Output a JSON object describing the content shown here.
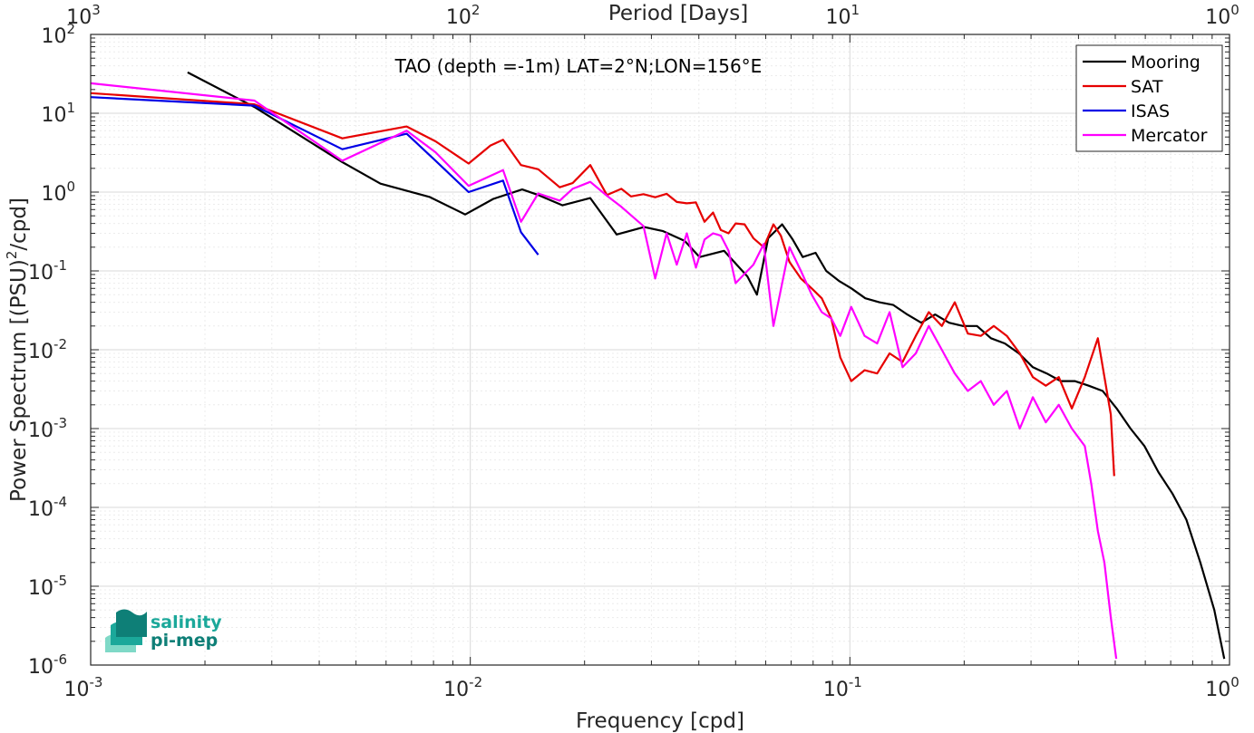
{
  "chart_data": {
    "type": "line",
    "title": "TAO (depth =-1m) LAT=2°N;LON=156°E",
    "xlabel": "Frequency [cpd]",
    "ylabel_parts": [
      "Power Spectrum [(PSU)",
      "2",
      "/cpd]"
    ],
    "x2label": "Period [Days]",
    "xscale": "log",
    "yscale": "log",
    "xlim": [
      0.001,
      1
    ],
    "ylim": [
      1e-06,
      100
    ],
    "grid": true,
    "legend_position": "top-right",
    "xticks": [
      {
        "value": 0.001,
        "base": "10",
        "exp": "-3"
      },
      {
        "value": 0.01,
        "base": "10",
        "exp": "-2"
      },
      {
        "value": 0.1,
        "base": "10",
        "exp": "-1"
      },
      {
        "value": 1,
        "base": "10",
        "exp": "0"
      }
    ],
    "x2ticks": [
      {
        "value": 0.001,
        "base": "10",
        "exp": "3"
      },
      {
        "value": 0.01,
        "base": "10",
        "exp": "2"
      },
      {
        "value": 0.1,
        "base": "10",
        "exp": "1"
      },
      {
        "value": 1,
        "base": "10",
        "exp": "0"
      }
    ],
    "yticks": [
      {
        "value": 100,
        "base": "10",
        "exp": "2"
      },
      {
        "value": 10,
        "base": "10",
        "exp": "1"
      },
      {
        "value": 1,
        "base": "10",
        "exp": "0"
      },
      {
        "value": 0.1,
        "base": "10",
        "exp": "-1"
      },
      {
        "value": 0.01,
        "base": "10",
        "exp": "-2"
      },
      {
        "value": 0.001,
        "base": "10",
        "exp": "-3"
      },
      {
        "value": 0.0001,
        "base": "10",
        "exp": "-4"
      },
      {
        "value": 1e-05,
        "base": "10",
        "exp": "-5"
      },
      {
        "value": 1e-06,
        "base": "10",
        "exp": "-6"
      }
    ],
    "series": [
      {
        "name": "Mooring",
        "color": "#000000",
        "x": [
          0.0018,
          0.0027,
          0.0046,
          0.0058,
          0.0078,
          0.0097,
          0.0115,
          0.0137,
          0.0151,
          0.0175,
          0.0207,
          0.0243,
          0.0287,
          0.0322,
          0.0367,
          0.0402,
          0.0466,
          0.0537,
          0.0569,
          0.0609,
          0.0663,
          0.0707,
          0.0751,
          0.0812,
          0.0866,
          0.0935,
          0.1009,
          0.1098,
          0.1195,
          0.1301,
          0.1416,
          0.1541,
          0.1677,
          0.1825,
          0.1986,
          0.2162,
          0.2353,
          0.2561,
          0.2787,
          0.3033,
          0.3301,
          0.3593,
          0.391,
          0.4256,
          0.4632,
          0.5041,
          0.5486,
          0.5971,
          0.6499,
          0.7073,
          0.7698,
          0.8378,
          0.9119,
          0.9684
        ],
        "y": [
          33,
          12,
          2.4,
          1.28,
          0.87,
          0.52,
          0.82,
          1.08,
          0.92,
          0.68,
          0.84,
          0.29,
          0.36,
          0.32,
          0.24,
          0.15,
          0.18,
          0.085,
          0.05,
          0.26,
          0.39,
          0.25,
          0.15,
          0.17,
          0.1,
          0.075,
          0.06,
          0.045,
          0.04,
          0.037,
          0.028,
          0.022,
          0.028,
          0.022,
          0.02,
          0.02,
          0.014,
          0.012,
          0.009,
          0.006,
          0.005,
          0.004,
          0.004,
          0.0035,
          0.003,
          0.0018,
          0.001,
          0.0006,
          0.00028,
          0.00015,
          7e-05,
          2e-05,
          5e-06,
          1.2e-06
        ]
      },
      {
        "name": "SAT",
        "color": "#e60000",
        "x": [
          0.001,
          0.0027,
          0.0046,
          0.0068,
          0.0081,
          0.0099,
          0.0113,
          0.0122,
          0.0136,
          0.0151,
          0.0172,
          0.0186,
          0.0207,
          0.0229,
          0.025,
          0.0265,
          0.0286,
          0.0307,
          0.0329,
          0.035,
          0.0372,
          0.0393,
          0.0414,
          0.0436,
          0.0457,
          0.0479,
          0.05,
          0.0528,
          0.0557,
          0.0593,
          0.0629,
          0.0658,
          0.0693,
          0.0743,
          0.0793,
          0.0843,
          0.0893,
          0.0943,
          0.1008,
          0.1093,
          0.118,
          0.1272,
          0.1376,
          0.1491,
          0.1613,
          0.1746,
          0.1889,
          0.2045,
          0.2212,
          0.2393,
          0.259,
          0.2802,
          0.3033,
          0.3282,
          0.355,
          0.3843,
          0.4158,
          0.4499,
          0.4868,
          0.4968
        ],
        "y": [
          18,
          13,
          4.8,
          6.8,
          4.4,
          2.3,
          3.9,
          4.6,
          2.2,
          1.95,
          1.15,
          1.3,
          2.2,
          0.92,
          1.1,
          0.88,
          0.94,
          0.86,
          0.95,
          0.75,
          0.72,
          0.74,
          0.42,
          0.55,
          0.33,
          0.3,
          0.4,
          0.39,
          0.26,
          0.2,
          0.39,
          0.28,
          0.13,
          0.08,
          0.06,
          0.045,
          0.025,
          0.008,
          0.004,
          0.0055,
          0.005,
          0.009,
          0.007,
          0.015,
          0.03,
          0.02,
          0.04,
          0.016,
          0.015,
          0.02,
          0.015,
          0.009,
          0.0045,
          0.0035,
          0.0045,
          0.0018,
          0.0045,
          0.014,
          0.0015,
          0.00025
        ]
      },
      {
        "name": "ISAS",
        "color": "#0000e6",
        "x": [
          0.001,
          0.0027,
          0.0046,
          0.0068,
          0.0081,
          0.0099,
          0.0122,
          0.0136,
          0.0151
        ],
        "y": [
          16,
          12.5,
          3.5,
          5.5,
          2.5,
          1.0,
          1.4,
          0.31,
          0.16
        ]
      },
      {
        "name": "Mercator",
        "color": "#ff00ff",
        "x": [
          0.001,
          0.0027,
          0.0046,
          0.0068,
          0.0081,
          0.0099,
          0.0122,
          0.0136,
          0.0151,
          0.0172,
          0.0186,
          0.0207,
          0.0229,
          0.025,
          0.0286,
          0.0307,
          0.0329,
          0.035,
          0.0372,
          0.0393,
          0.0414,
          0.0436,
          0.0457,
          0.0479,
          0.05,
          0.0557,
          0.0593,
          0.0629,
          0.0693,
          0.0743,
          0.0793,
          0.0843,
          0.0893,
          0.0943,
          0.1008,
          0.1093,
          0.118,
          0.1272,
          0.1376,
          0.1491,
          0.1613,
          0.1746,
          0.1889,
          0.2045,
          0.2212,
          0.2393,
          0.259,
          0.2802,
          0.3033,
          0.3282,
          0.355,
          0.3843,
          0.4158,
          0.4323,
          0.4499,
          0.4682,
          0.4868,
          0.5032
        ],
        "y": [
          24,
          14.5,
          2.5,
          6.0,
          3.2,
          1.2,
          1.9,
          0.42,
          0.96,
          0.78,
          1.1,
          1.35,
          0.9,
          0.65,
          0.37,
          0.08,
          0.3,
          0.12,
          0.3,
          0.11,
          0.25,
          0.3,
          0.28,
          0.18,
          0.07,
          0.12,
          0.22,
          0.02,
          0.2,
          0.1,
          0.05,
          0.03,
          0.025,
          0.015,
          0.035,
          0.015,
          0.012,
          0.03,
          0.006,
          0.009,
          0.02,
          0.01,
          0.005,
          0.003,
          0.004,
          0.002,
          0.003,
          0.001,
          0.0025,
          0.0012,
          0.002,
          0.001,
          0.0006,
          0.0002,
          5e-05,
          2e-05,
          4e-06,
          1.2e-06
        ]
      }
    ]
  },
  "logo": {
    "line1": "salinity",
    "line2": "pi-mep",
    "color_text": "#1ba89a",
    "color_dark": "#0e7f77",
    "color_light": "#7fd9c7"
  }
}
